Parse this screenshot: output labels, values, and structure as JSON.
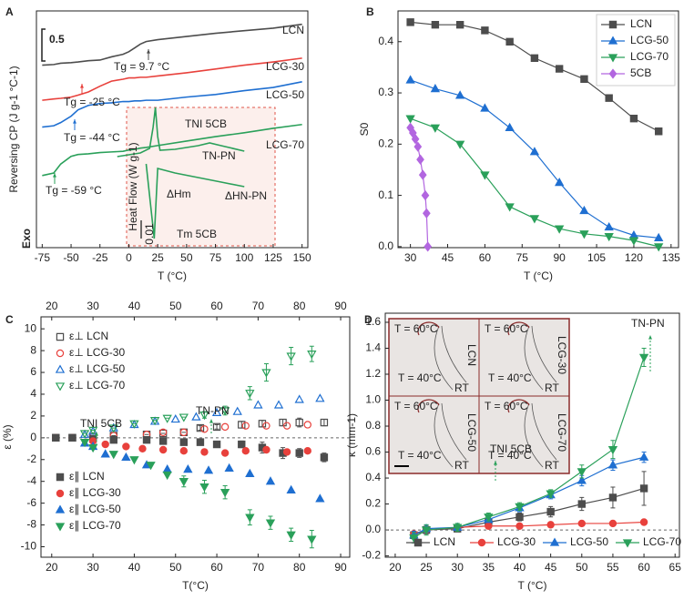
{
  "chart_data": [
    {
      "type": "line",
      "panel_label": "A",
      "xlabel": "T (°C)",
      "ylabel": "Reversing CP (J g-1 °C-1)",
      "xlim": [
        -80,
        155
      ],
      "xticks": [
        -75,
        -50,
        -25,
        0,
        25,
        50,
        75,
        100,
        125,
        150
      ],
      "ylim": [
        0,
        3.71
      ],
      "scale_bar": 0.5,
      "x": [
        -75,
        -65,
        -59,
        -50,
        -44,
        -35,
        -25,
        -15,
        -5,
        0,
        5,
        10,
        15,
        25,
        50,
        75,
        100,
        125,
        150
      ],
      "series": [
        {
          "name": "LCN",
          "color": "#4d4d4d",
          "values": [
            2.86,
            2.87,
            2.89,
            2.9,
            2.91,
            2.93,
            2.94,
            2.99,
            3.03,
            3.07,
            3.13,
            3.19,
            3.23,
            3.26,
            3.31,
            3.36,
            3.4,
            3.44,
            3.5
          ]
        },
        {
          "name": "LCG-30",
          "color": "#e8413c",
          "values": [
            2.31,
            2.33,
            2.34,
            2.36,
            2.39,
            2.44,
            2.53,
            2.61,
            2.64,
            2.66,
            2.66,
            2.67,
            2.67,
            2.69,
            2.74,
            2.8,
            2.86,
            2.91,
            2.97
          ]
        },
        {
          "name": "LCG-50",
          "color": "#1f6fd1",
          "values": [
            1.89,
            1.91,
            1.96,
            2.06,
            2.16,
            2.23,
            2.26,
            2.27,
            2.29,
            2.29,
            2.3,
            2.3,
            2.31,
            2.31,
            2.36,
            2.4,
            2.46,
            2.51,
            2.6
          ]
        },
        {
          "name": "LCG-70",
          "color": "#2aa05a",
          "values": [
            1.13,
            1.17,
            1.31,
            1.43,
            1.46,
            1.47,
            1.49,
            1.5,
            1.51,
            1.53,
            1.54,
            1.56,
            1.57,
            1.6,
            1.67,
            1.74,
            1.8,
            1.87,
            1.93
          ]
        }
      ],
      "inset": {
        "ylabel": "Heat Flow (W g-1)",
        "ylim": [
          0,
          0.076
        ],
        "scale_bar": 0.01,
        "color": "#2aa05a",
        "series": [
          {
            "x": [
              -10,
              10,
              18,
              21,
              23,
              25,
              27,
              40,
              60,
              70,
              80,
              100
            ],
            "values": [
              0.049,
              0.051,
              0.0535,
              0.065,
              0.076,
              0.06,
              0.0525,
              0.053,
              0.055,
              0.0565,
              0.055,
              0.052
            ]
          },
          {
            "x": [
              15,
              22,
              25,
              40,
              60,
              80,
              100
            ],
            "values": [
              0.045,
              0.004,
              0.0425,
              0.04,
              0.0375,
              0.035,
              0.0325
            ]
          }
        ]
      },
      "annotations": [
        "Tg = 9.7 °C",
        "Tg = -25 °C",
        "Tg = -44 °C",
        "Tg = -59 °C",
        "TNI 5CB",
        "TN-PN",
        "ΔHm",
        "ΔHN-PN",
        "Tm 5CB",
        "Exo"
      ]
    },
    {
      "type": "line",
      "panel_label": "B",
      "xlabel": "T (°C)",
      "ylabel": "S0",
      "xlim": [
        25,
        138
      ],
      "xticks": [
        30,
        45,
        60,
        75,
        90,
        105,
        120,
        135
      ],
      "ylim": [
        -0.002,
        0.46
      ],
      "yticks": [
        {
          "value": 0,
          "label": "0.0"
        },
        0.1,
        0.2,
        0.3,
        0.4
      ],
      "legend": "upper right",
      "series": [
        {
          "name": "LCN",
          "color": "#4d4d4d",
          "marker": "square",
          "x": [
            30,
            40,
            50,
            60,
            70,
            80,
            90,
            100,
            110,
            120,
            130
          ],
          "values": [
            0.438,
            0.433,
            0.433,
            0.422,
            0.4,
            0.368,
            0.347,
            0.327,
            0.29,
            0.25,
            0.225
          ]
        },
        {
          "name": "LCG-50",
          "color": "#1f6fd1",
          "marker": "triangle-up",
          "x": [
            30,
            40,
            50,
            60,
            70,
            80,
            90,
            100,
            110,
            120,
            130
          ],
          "values": [
            0.325,
            0.308,
            0.295,
            0.27,
            0.232,
            0.185,
            0.125,
            0.07,
            0.038,
            0.022,
            0.017
          ]
        },
        {
          "name": "LCG-70",
          "color": "#2aa05a",
          "marker": "triangle-down",
          "x": [
            30,
            40,
            50,
            60,
            70,
            80,
            90,
            100,
            110,
            120,
            130
          ],
          "values": [
            0.25,
            0.232,
            0.2,
            0.14,
            0.078,
            0.055,
            0.035,
            0.025,
            0.02,
            0.012,
            0.0
          ]
        },
        {
          "name": "5CB",
          "color": "#b266e0",
          "marker": "diamond",
          "x": [
            30,
            31,
            32,
            33,
            34,
            35,
            36,
            36.5,
            37
          ],
          "values": [
            0.232,
            0.222,
            0.21,
            0.195,
            0.17,
            0.14,
            0.1,
            0.065,
            0.0
          ]
        }
      ]
    },
    {
      "type": "scatter",
      "panel_label": "C",
      "xlabel": "T(°C)",
      "ylabel": "ε (%)",
      "xlim": [
        17.4,
        92.2
      ],
      "xticks": [
        20,
        30,
        40,
        50,
        60,
        70,
        80,
        90
      ],
      "x2ticks": [
        20,
        30,
        40,
        50,
        60,
        70,
        80,
        90
      ],
      "ylim": [
        -10.96,
        11.1
      ],
      "yticks": [
        -10,
        -8,
        -6,
        -4,
        -2,
        0,
        2,
        4,
        6,
        8,
        10
      ],
      "reference_line": 0,
      "series": [
        {
          "name": "ε⊥ LCN",
          "color": "#4d4d4d",
          "marker": "square",
          "filled": false,
          "x": [
            21,
            25,
            30,
            35,
            43,
            47,
            52,
            56,
            60,
            66,
            71,
            76,
            80,
            86
          ],
          "values": [
            0,
            0,
            0.1,
            0.2,
            0.3,
            0.4,
            0.5,
            0.9,
            1.0,
            1.2,
            1.3,
            1.4,
            1.4,
            1.4
          ],
          "errors": [
            0,
            0,
            0,
            0,
            0,
            0,
            0,
            0.2,
            0.2,
            0.3,
            0.3,
            0.3,
            0.4,
            0.3
          ]
        },
        {
          "name": "ε⊥ LCG-30",
          "color": "#e8413c",
          "marker": "circle",
          "filled": false,
          "x": [
            21,
            25,
            30,
            35,
            43,
            47,
            52,
            57,
            62,
            67,
            72,
            77,
            82
          ],
          "values": [
            0,
            0,
            0.1,
            0.2,
            0.3,
            0.5,
            0.5,
            0.8,
            1.0,
            1.1,
            1.1,
            1.1,
            1.2
          ]
        },
        {
          "name": "ε⊥ LCG-50",
          "color": "#1f6fd1",
          "marker": "triangle-up",
          "filled": false,
          "x": [
            28,
            30,
            35,
            40,
            45,
            50,
            55,
            60,
            65,
            70,
            75,
            80,
            85
          ],
          "values": [
            0.3,
            0.6,
            0.9,
            1.2,
            1.5,
            1.7,
            1.9,
            2.3,
            2.4,
            3.0,
            3.0,
            3.5,
            3.6
          ]
        },
        {
          "name": "ε⊥ LCG-70",
          "color": "#2aa05a",
          "marker": "triangle-down",
          "filled": false,
          "x": [
            28,
            30,
            35,
            40,
            45,
            48,
            52,
            57,
            62,
            68,
            72,
            78,
            83
          ],
          "values": [
            0.4,
            0.7,
            0.9,
            1.3,
            1.6,
            1.8,
            1.9,
            2.1,
            2.5,
            4.1,
            6.0,
            7.5,
            7.7
          ],
          "errors": [
            0,
            0,
            0,
            0,
            0,
            0,
            0,
            0.3,
            0.4,
            0.6,
            0.8,
            0.8,
            0.7
          ]
        },
        {
          "name": "ε∥ LCN",
          "color": "#4d4d4d",
          "marker": "square",
          "filled": true,
          "x": [
            21,
            25,
            30,
            35,
            43,
            47,
            52,
            56,
            60,
            66,
            71,
            76,
            80,
            86
          ],
          "values": [
            0,
            0,
            -0.1,
            -0.2,
            -0.2,
            -0.3,
            -0.4,
            -0.4,
            -0.6,
            -0.6,
            -0.9,
            -1.4,
            -1.4,
            -1.8
          ],
          "errors": [
            0,
            0,
            0,
            0,
            0,
            0,
            0,
            0.2,
            0.2,
            0.3,
            0.5,
            0.5,
            0.4,
            0.4
          ]
        },
        {
          "name": "ε∥ LCG-30",
          "color": "#e8413c",
          "marker": "circle",
          "filled": true,
          "x": [
            30,
            33,
            38,
            42,
            47,
            52,
            57,
            62,
            67,
            72,
            77,
            82
          ],
          "values": [
            -0.3,
            -0.6,
            -0.8,
            -1.0,
            -1.1,
            -1.2,
            -1.3,
            -1.4,
            -1.2,
            -1.1,
            -1.3,
            -1.2
          ]
        },
        {
          "name": "ε∥ LCG-50",
          "color": "#1f6fd1",
          "marker": "triangle-up",
          "filled": true,
          "x": [
            28,
            30,
            33,
            38,
            43,
            48,
            53,
            58,
            63,
            68,
            73,
            78,
            85
          ],
          "values": [
            -0.5,
            -0.8,
            -1.5,
            -1.8,
            -2.5,
            -2.9,
            -2.9,
            -3.0,
            -2.8,
            -3.3,
            -4.0,
            -4.8,
            -5.6
          ]
        },
        {
          "name": "ε∥ LCG-70",
          "color": "#2aa05a",
          "marker": "triangle-down",
          "filled": true,
          "x": [
            28,
            30,
            35,
            40,
            44,
            48,
            52,
            57,
            62,
            68,
            73,
            78,
            83
          ],
          "values": [
            -0.4,
            -0.9,
            -1.5,
            -2.0,
            -2.5,
            -3.4,
            -4.0,
            -4.5,
            -5.0,
            -7.3,
            -7.8,
            -8.9,
            -9.3
          ],
          "errors": [
            0,
            0,
            0,
            0,
            0,
            0,
            0.5,
            0.6,
            0.6,
            0.7,
            0.6,
            0.6,
            0.8
          ]
        }
      ],
      "annotations": [
        "TNI 5CB",
        "TN-PN"
      ]
    },
    {
      "type": "line",
      "panel_label": "D",
      "xlabel": "T (°C)",
      "ylabel": "κ (mm-1)",
      "xlim": [
        18.4,
        65.7
      ],
      "xticks": [
        20,
        25,
        30,
        35,
        40,
        45,
        50,
        55,
        60,
        65
      ],
      "ylim": [
        -0.21,
        1.67
      ],
      "yticks": [
        -0.2,
        {
          "value": 0,
          "label": "0.0"
        },
        0.2,
        0.4,
        0.6,
        0.8,
        {
          "value": 1,
          "label": "1.0"
        },
        1.2,
        1.4,
        1.6
      ],
      "reference_line": 0,
      "legend": "lower center",
      "x": [
        23,
        25,
        30,
        35,
        40,
        45,
        50,
        55,
        60
      ],
      "series": [
        {
          "name": "LCN",
          "color": "#4d4d4d",
          "marker": "square",
          "values": [
            -0.04,
            0.0,
            0.01,
            0.06,
            0.1,
            0.14,
            0.2,
            0.25,
            0.32
          ],
          "errors": [
            0.03,
            0.03,
            0.02,
            0.03,
            0.03,
            0.04,
            0.05,
            0.08,
            0.13
          ]
        },
        {
          "name": "LCG-30",
          "color": "#e8413c",
          "marker": "circle",
          "values": [
            -0.03,
            0.0,
            0.02,
            0.03,
            0.03,
            0.04,
            0.05,
            0.05,
            0.06
          ],
          "errors": [
            0.02,
            0.02,
            0.01,
            0.01,
            0.01,
            0.01,
            0.01,
            0.01,
            0.01
          ]
        },
        {
          "name": "LCG-50",
          "color": "#1f6fd1",
          "marker": "triangle-up",
          "values": [
            -0.04,
            0.01,
            0.02,
            0.08,
            0.17,
            0.27,
            0.38,
            0.5,
            0.56
          ],
          "errors": [
            0.03,
            0.03,
            0.02,
            0.02,
            0.03,
            0.03,
            0.04,
            0.04,
            0.04
          ]
        },
        {
          "name": "LCG-70",
          "color": "#2aa05a",
          "marker": "triangle-down",
          "values": [
            -0.06,
            0.0,
            0.02,
            0.1,
            0.18,
            0.28,
            0.45,
            0.62,
            1.33
          ],
          "errors": [
            0.04,
            0.04,
            0.03,
            0.03,
            0.03,
            0.03,
            0.05,
            0.07,
            0.07
          ]
        }
      ],
      "annotations": [
        "TN-PN",
        "TNI 5CB"
      ],
      "inset": {
        "panels": [
          {
            "label": "LCN",
            "texts": [
              "T = 60°C",
              "T = 40°C",
              "RT"
            ]
          },
          {
            "label": "LCG-30",
            "texts": [
              "T = 60°C",
              "T = 40°C",
              "RT"
            ]
          },
          {
            "label": "LCG-50",
            "texts": [
              "T = 60°C",
              "T = 40°C",
              "RT"
            ]
          },
          {
            "label": "LCG-70",
            "texts": [
              "T = 60°C",
              "T = 40°C",
              "RT"
            ]
          }
        ]
      }
    }
  ]
}
